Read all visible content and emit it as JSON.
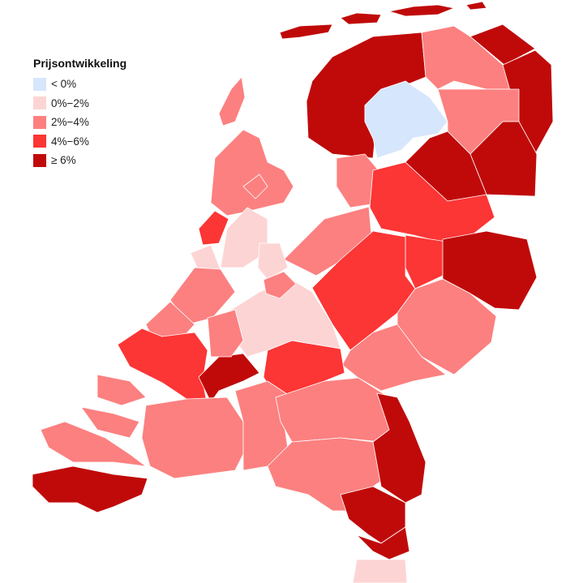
{
  "legend": {
    "title": "Prijsontwikkeling",
    "items": [
      {
        "label": "< 0%",
        "color": "#d6e6fc"
      },
      {
        "label": "0%−2%",
        "color": "#fdd4d4"
      },
      {
        "label": "2%−4%",
        "color": "#fc8080"
      },
      {
        "label": "4%−6%",
        "color": "#fc3535"
      },
      {
        "label": "≥ 6%",
        "color": "#c00a0a"
      }
    ]
  },
  "regions": [
    {
      "class": 4
    },
    {
      "class": 4
    },
    {
      "class": 4
    },
    {
      "class": 4
    },
    {
      "class": 4
    },
    {
      "class": 0
    },
    {
      "class": 2
    },
    {
      "class": 4
    },
    {
      "class": 4
    },
    {
      "class": 2
    },
    {
      "class": 4
    },
    {
      "class": 4
    },
    {
      "class": 2
    },
    {
      "class": 2
    },
    {
      "class": 3
    },
    {
      "class": 3
    },
    {
      "class": 4
    },
    {
      "class": 3
    },
    {
      "class": 2
    },
    {
      "class": 2
    },
    {
      "class": 3
    },
    {
      "class": 1
    },
    {
      "class": 2
    },
    {
      "class": 3
    },
    {
      "class": 1
    },
    {
      "class": 1
    },
    {
      "class": 1
    },
    {
      "class": 2
    },
    {
      "class": 2
    },
    {
      "class": 2
    },
    {
      "class": 3
    },
    {
      "class": 4
    },
    {
      "class": 2
    },
    {
      "class": 4
    },
    {
      "class": 2
    },
    {
      "class": 2
    },
    {
      "class": 2
    },
    {
      "class": 2
    },
    {
      "class": 2
    },
    {
      "class": 2
    },
    {
      "class": 2
    },
    {
      "class": 4
    },
    {
      "class": 4
    },
    {
      "class": 4
    },
    {
      "class": 1
    },
    {
      "class": 2
    },
    {
      "class": 2
    }
  ]
}
